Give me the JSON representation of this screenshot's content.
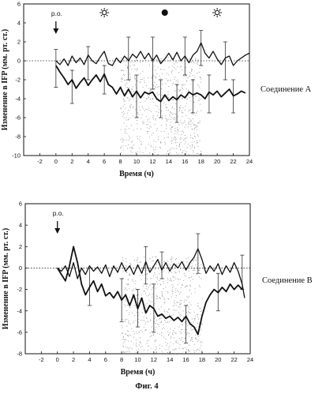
{
  "figure": {
    "caption": "Фиг. 4"
  },
  "chart_data": [
    {
      "type": "line",
      "title": "",
      "compound_label": "Соединение A",
      "xlabel": "Время (ч)",
      "ylabel": "Изменение в IFP (мм. рт. ст.)",
      "xlim": [
        -4,
        24
      ],
      "ylim": [
        -10,
        6
      ],
      "xticks": [
        -2,
        0,
        2,
        4,
        6,
        8,
        10,
        12,
        14,
        16,
        18,
        20,
        22,
        24
      ],
      "yticks": [
        6,
        4,
        2,
        0,
        -2,
        -4,
        -6,
        -8,
        -10
      ],
      "dose_marker": {
        "label": "p.o.",
        "x": 0
      },
      "symbols": [
        {
          "icon": "sun-icon",
          "x": 6
        },
        {
          "icon": "moon-icon",
          "x": 13.5
        },
        {
          "icon": "sun-icon",
          "x": 20
        }
      ],
      "dark_period": [
        8,
        18
      ],
      "series": [
        {
          "values": [
            [
              0,
              0
            ],
            [
              0.5,
              -0.4
            ],
            [
              1,
              0.2
            ],
            [
              1.5,
              -0.5
            ],
            [
              2,
              0.5
            ],
            [
              2.5,
              -0.2
            ],
            [
              3,
              0.3
            ],
            [
              3.5,
              -0.4
            ],
            [
              4,
              0.6
            ],
            [
              4.5,
              0
            ],
            [
              5,
              -0.3
            ],
            [
              5.5,
              0.4
            ],
            [
              6,
              1
            ],
            [
              6.5,
              -0.3
            ],
            [
              7,
              -0.5
            ],
            [
              7.5,
              0.3
            ],
            [
              8,
              -0.2
            ],
            [
              8.5,
              0.5
            ],
            [
              9,
              0
            ],
            [
              9.5,
              0.7
            ],
            [
              10,
              0.3
            ],
            [
              10.5,
              1
            ],
            [
              11,
              0.2
            ],
            [
              11.5,
              0.8
            ],
            [
              12,
              0
            ],
            [
              12.5,
              0.6
            ],
            [
              13,
              -0.3
            ],
            [
              13.5,
              0.2
            ],
            [
              14,
              0.8
            ],
            [
              14.5,
              0.1
            ],
            [
              15,
              0.9
            ],
            [
              15.5,
              0
            ],
            [
              16,
              0.5
            ],
            [
              16.5,
              -0.2
            ],
            [
              17,
              0.6
            ],
            [
              17.5,
              1
            ],
            [
              18,
              1.9
            ],
            [
              18.5,
              0.8
            ],
            [
              19,
              0.3
            ],
            [
              19.5,
              1
            ],
            [
              20,
              0.2
            ],
            [
              20.5,
              -0.4
            ],
            [
              21,
              0.3
            ],
            [
              21.5,
              0.5
            ],
            [
              22,
              -0.5
            ],
            [
              22.5,
              0
            ],
            [
              23,
              0.3
            ],
            [
              23.5,
              0.6
            ],
            [
              24,
              0.8
            ]
          ],
          "error_bars": [
            [
              0,
              -2.8,
              1.2
            ],
            [
              4,
              -2,
              1.5
            ],
            [
              9,
              -2,
              2.5
            ],
            [
              12,
              -3,
              2.5
            ],
            [
              16,
              -1.5,
              2.5
            ],
            [
              18,
              -0.5,
              3.2
            ],
            [
              21,
              -2,
              2
            ]
          ]
        },
        {
          "values": [
            [
              0,
              -0.5
            ],
            [
              0.5,
              -1.2
            ],
            [
              1,
              -1.8
            ],
            [
              1.5,
              -2.5
            ],
            [
              2,
              -2
            ],
            [
              2.5,
              -2.9
            ],
            [
              3,
              -2.3
            ],
            [
              3.5,
              -1.8
            ],
            [
              4,
              -2.6
            ],
            [
              4.5,
              -2
            ],
            [
              5,
              -1.5
            ],
            [
              5.5,
              -2.2
            ],
            [
              6,
              -1.4
            ],
            [
              6.5,
              -2.5
            ],
            [
              7,
              -2.8
            ],
            [
              7.5,
              -3.5
            ],
            [
              8,
              -2.8
            ],
            [
              8.5,
              -3.7
            ],
            [
              9,
              -3
            ],
            [
              9.5,
              -3.8
            ],
            [
              10,
              -3.2
            ],
            [
              10.5,
              -3.9
            ],
            [
              11,
              -3.3
            ],
            [
              11.5,
              -3.5
            ],
            [
              12,
              -3.3
            ],
            [
              12.5,
              -4
            ],
            [
              13,
              -4.3
            ],
            [
              13.5,
              -3.6
            ],
            [
              14,
              -4.2
            ],
            [
              14.5,
              -3.8
            ],
            [
              15,
              -4.1
            ],
            [
              15.5,
              -3.6
            ],
            [
              16,
              -3.9
            ],
            [
              16.5,
              -3.3
            ],
            [
              17,
              -3.6
            ],
            [
              17.5,
              -3.4
            ],
            [
              18,
              -3.6
            ],
            [
              18.5,
              -4
            ],
            [
              19,
              -3.3
            ],
            [
              19.5,
              -3.6
            ],
            [
              20,
              -3.2
            ],
            [
              20.5,
              -3.8
            ],
            [
              21,
              -3.4
            ],
            [
              21.5,
              -3
            ],
            [
              22,
              -3.7
            ],
            [
              22.5,
              -3.5
            ],
            [
              23,
              -3.2
            ],
            [
              23.5,
              -3.4
            ]
          ],
          "error_bars": [
            [
              2,
              -4.5,
              -1
            ],
            [
              6,
              -3.5,
              -0.5
            ],
            [
              10,
              -6,
              -1.5
            ],
            [
              13,
              -6,
              -2
            ],
            [
              15,
              -6.5,
              -2.5
            ],
            [
              17,
              -5.5,
              -2
            ],
            [
              19,
              -5.5,
              -1.5
            ],
            [
              22,
              -5.5,
              -2
            ]
          ]
        }
      ]
    },
    {
      "type": "line",
      "title": "",
      "compound_label": "Соединение B",
      "xlabel": "Время (ч)",
      "ylabel": "Изменение в IFP (мм. рт. ст.)",
      "xlim": [
        -4,
        24
      ],
      "ylim": [
        -8,
        6
      ],
      "xticks": [
        -2,
        0,
        2,
        4,
        6,
        8,
        10,
        12,
        14,
        16,
        18,
        20,
        22,
        24
      ],
      "yticks": [
        6,
        4,
        2,
        0,
        -2,
        -4,
        -6,
        -8
      ],
      "dose_marker": {
        "label": "p.o.",
        "x": 0
      },
      "dark_period": [
        8,
        18
      ],
      "series": [
        {
          "values": [
            [
              0,
              0
            ],
            [
              0.5,
              -0.3
            ],
            [
              1,
              0.2
            ],
            [
              1.5,
              -0.8
            ],
            [
              2,
              0.5
            ],
            [
              2.5,
              -1
            ],
            [
              3,
              0
            ],
            [
              3.5,
              -0.6
            ],
            [
              4,
              0.2
            ],
            [
              4.5,
              -0.3
            ],
            [
              5,
              0.1
            ],
            [
              5.5,
              -0.5
            ],
            [
              6,
              0.3
            ],
            [
              6.5,
              -0.8
            ],
            [
              7,
              0.2
            ],
            [
              7.5,
              -0.4
            ],
            [
              8,
              0.5
            ],
            [
              8.5,
              -0.3
            ],
            [
              9,
              0.2
            ],
            [
              9.5,
              -0.6
            ],
            [
              10,
              0.3
            ],
            [
              10.5,
              -0.5
            ],
            [
              11,
              0.6
            ],
            [
              11.5,
              -0.4
            ],
            [
              12,
              0.2
            ],
            [
              12.5,
              0.8
            ],
            [
              13,
              -0.2
            ],
            [
              13.5,
              0.5
            ],
            [
              14,
              -0.3
            ],
            [
              14.5,
              0.4
            ],
            [
              15,
              0
            ],
            [
              15.5,
              0.6
            ],
            [
              16,
              -0.2
            ],
            [
              16.5,
              0.5
            ],
            [
              17,
              1
            ],
            [
              17.5,
              1.8
            ],
            [
              18,
              0.8
            ],
            [
              18.5,
              -0.5
            ],
            [
              19,
              0.2
            ],
            [
              19.5,
              -0.3
            ],
            [
              20,
              0.4
            ],
            [
              20.5,
              -0.6
            ],
            [
              21,
              0.2
            ],
            [
              21.5,
              -0.4
            ],
            [
              22,
              0.5
            ],
            [
              22.5,
              -0.3
            ],
            [
              23,
              -1.5
            ],
            [
              23.3,
              -2.8
            ]
          ],
          "error_bars": [
            [
              11,
              -1.5,
              2
            ],
            [
              13,
              -1,
              1.5
            ],
            [
              17.5,
              -0.5,
              3.2
            ],
            [
              23,
              -2,
              1.2
            ]
          ]
        },
        {
          "values": [
            [
              0,
              0
            ],
            [
              0.5,
              -0.6
            ],
            [
              1,
              -1.2
            ],
            [
              1.5,
              0.2
            ],
            [
              2,
              2
            ],
            [
              2.5,
              0.5
            ],
            [
              3,
              -1.5
            ],
            [
              3.5,
              -2.5
            ],
            [
              4,
              -1.8
            ],
            [
              4.5,
              -1.2
            ],
            [
              5,
              -2.2
            ],
            [
              5.5,
              -1.5
            ],
            [
              6,
              -2.6
            ],
            [
              6.5,
              -2.3
            ],
            [
              7,
              -2.8
            ],
            [
              7.5,
              -2.2
            ],
            [
              8,
              -3
            ],
            [
              8.5,
              -2.5
            ],
            [
              9,
              -3.5
            ],
            [
              9.5,
              -2.5
            ],
            [
              10,
              -3.8
            ],
            [
              10.5,
              -2.8
            ],
            [
              11,
              -4.2
            ],
            [
              11.5,
              -3.5
            ],
            [
              12,
              -3.8
            ],
            [
              12.5,
              -4.5
            ],
            [
              13,
              -4.3
            ],
            [
              13.5,
              -4.7
            ],
            [
              14,
              -4.5
            ],
            [
              14.5,
              -4.9
            ],
            [
              15,
              -4.6
            ],
            [
              15.5,
              -5
            ],
            [
              16,
              -4.5
            ],
            [
              16.5,
              -5.2
            ],
            [
              17,
              -5.5
            ],
            [
              17.5,
              -6.2
            ],
            [
              18,
              -4.5
            ],
            [
              18.5,
              -3.2
            ],
            [
              19,
              -2.5
            ],
            [
              19.5,
              -2
            ],
            [
              20,
              -2.3
            ],
            [
              20.5,
              -1.8
            ],
            [
              21,
              -2.2
            ],
            [
              21.5,
              -1.5
            ],
            [
              22,
              -2
            ],
            [
              22.5,
              -1.6
            ],
            [
              23,
              -2
            ]
          ],
          "error_bars": [
            [
              4,
              -3.5,
              0
            ],
            [
              8,
              -5,
              -1
            ],
            [
              10,
              -5.5,
              -2
            ],
            [
              12,
              -6,
              -1.5
            ],
            [
              16,
              -7,
              -3.5
            ],
            [
              20,
              -4,
              -0.5
            ]
          ]
        }
      ]
    }
  ]
}
